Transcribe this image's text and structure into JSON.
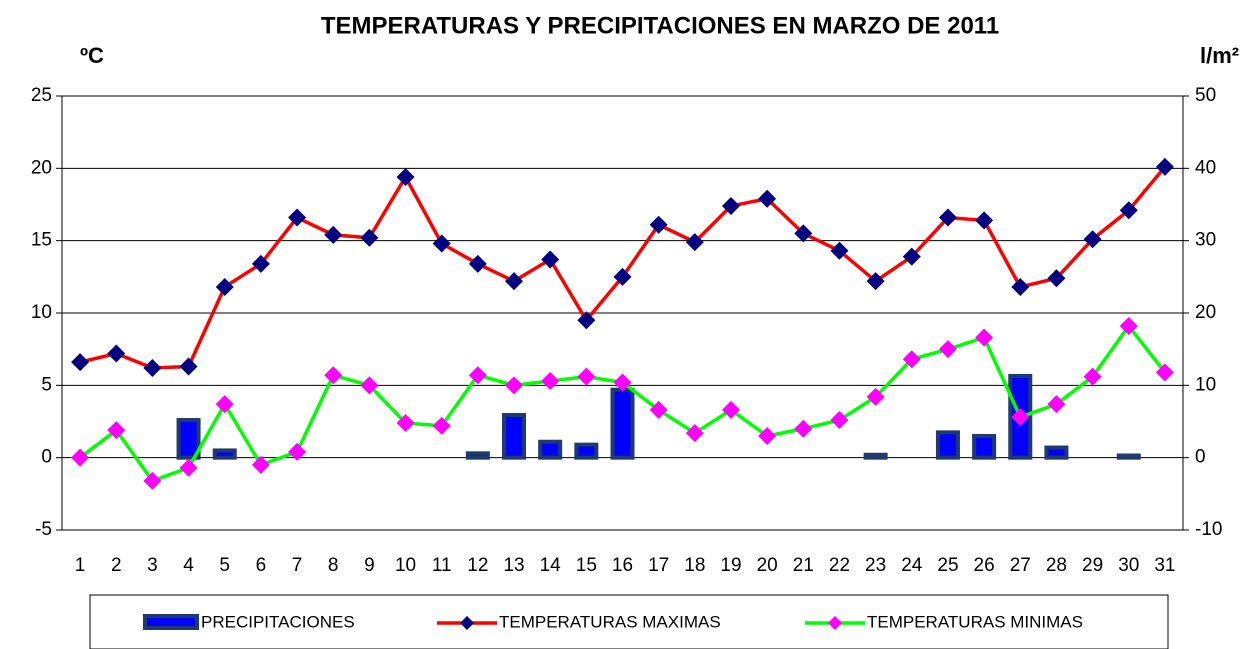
{
  "chart_data": {
    "type": "bar-line",
    "title": "TEMPERATURAS Y PRECIPITACIONES EN MARZO DE 2011",
    "y_label": "ºC",
    "y2_label": "l/m²",
    "categories": [
      "1",
      "2",
      "3",
      "4",
      "5",
      "6",
      "7",
      "8",
      "9",
      "10",
      "11",
      "12",
      "13",
      "14",
      "15",
      "16",
      "17",
      "18",
      "19",
      "20",
      "21",
      "22",
      "23",
      "24",
      "25",
      "26",
      "27",
      "28",
      "29",
      "30",
      "31"
    ],
    "series": [
      {
        "name": "PRECIPITACIONES",
        "type": "bar",
        "axis": "y2",
        "color": "#0000ff",
        "edge_color": "#1f3a6e",
        "values": [
          0,
          0,
          0,
          5.2,
          1.0,
          0,
          0,
          0,
          0,
          0,
          0,
          0.6,
          5.9,
          2.2,
          1.8,
          9.4,
          0,
          0,
          0,
          0,
          0,
          0,
          0.4,
          0,
          3.5,
          3.0,
          11.3,
          1.4,
          0,
          0.3,
          0
        ]
      },
      {
        "name": "TEMPERATURAS  MAXIMAS",
        "type": "line",
        "color": "#ff0000",
        "marker_color": "#000080",
        "values": [
          6.6,
          7.2,
          6.2,
          6.3,
          11.8,
          13.4,
          16.6,
          15.4,
          15.2,
          19.4,
          14.8,
          13.4,
          12.2,
          13.7,
          9.5,
          12.5,
          16.1,
          14.9,
          17.4,
          17.9,
          15.5,
          14.3,
          12.2,
          13.9,
          16.6,
          16.4,
          11.8,
          12.4,
          15.1,
          17.1,
          20.1
        ]
      },
      {
        "name": "TEMPERATURAS MINIMAS",
        "type": "line",
        "color": "#00ff00",
        "marker_color": "#ff00ff",
        "values": [
          0,
          1.9,
          -1.6,
          -0.7,
          3.7,
          -0.5,
          0.4,
          5.7,
          5.0,
          2.4,
          2.2,
          5.7,
          5.0,
          5.3,
          5.6,
          5.2,
          3.3,
          1.7,
          3.3,
          1.5,
          2.0,
          2.6,
          4.2,
          6.8,
          7.5,
          8.3,
          2.8,
          3.7,
          5.6,
          9.1,
          5.9
        ]
      }
    ],
    "ylim": [
      -5,
      25
    ],
    "yticks": [
      -5,
      0,
      5,
      10,
      15,
      20,
      25
    ],
    "y2lim": [
      -10,
      50
    ],
    "y2ticks": [
      -10,
      0,
      10,
      20,
      30,
      40,
      50
    ],
    "grid": true,
    "legend": "bottom"
  }
}
